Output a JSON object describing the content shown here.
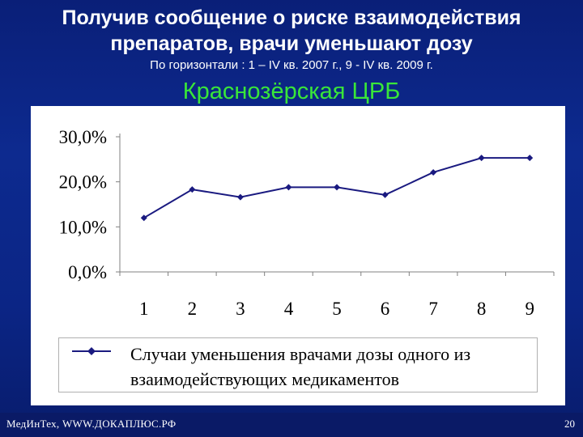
{
  "slide": {
    "title": "Получив сообщение о риске взаимодействия препаратов, врачи уменьшают дозу",
    "subtitle": "По горизонтали : 1 – IV кв. 2007 г., 9 - IV кв. 2009 г.",
    "hospital": "Краснозёрская ЦРБ"
  },
  "footer": {
    "left": "МедИнТех,  WWW.ДОКАПЛЮС.РФ",
    "page_number": "20"
  },
  "chart_data": {
    "type": "line",
    "categories": [
      "1",
      "2",
      "3",
      "4",
      "5",
      "6",
      "7",
      "8",
      "9"
    ],
    "series": [
      {
        "name": "Случаи уменьшения врачами дозы одного из взаимодействующих медикаментов",
        "values": [
          12.0,
          18.3,
          16.6,
          18.8,
          18.8,
          17.1,
          22.1,
          25.3,
          25.3
        ],
        "color": "#1a1a80"
      }
    ],
    "yticks": [
      "0,0%",
      "10,0%",
      "20,0%",
      "30,0%"
    ],
    "ylim": [
      0,
      30
    ],
    "grid": false,
    "legend_position": "bottom"
  },
  "colors": {
    "background": "#0b2585",
    "hospital_text": "#39e639",
    "line": "#1a1a80"
  }
}
